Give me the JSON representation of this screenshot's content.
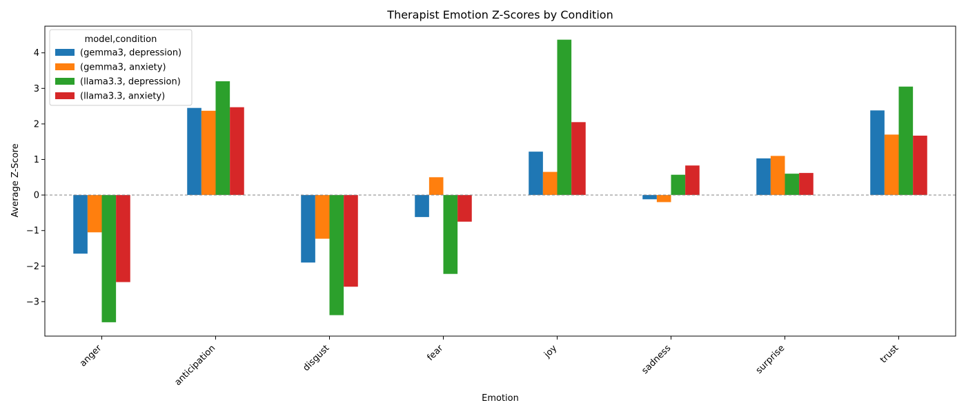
{
  "chart_data": {
    "type": "bar",
    "title": "Therapist Emotion Z-Scores by Condition",
    "xlabel": "Emotion",
    "ylabel": "Average Z-Score",
    "categories": [
      "anger",
      "anticipation",
      "disgust",
      "fear",
      "joy",
      "sadness",
      "surprise",
      "trust"
    ],
    "ylim": [
      -3.97,
      4.75
    ],
    "yticks": [
      {
        "value": -3,
        "label": "−3"
      },
      {
        "value": -2,
        "label": "−2"
      },
      {
        "value": -1,
        "label": "−1"
      },
      {
        "value": 0,
        "label": "0"
      },
      {
        "value": 1,
        "label": "1"
      },
      {
        "value": 2,
        "label": "2"
      },
      {
        "value": 3,
        "label": "3"
      },
      {
        "value": 4,
        "label": "4"
      }
    ],
    "zero_line": true,
    "grid": false,
    "legend": {
      "title": "model,condition",
      "position": "top-left"
    },
    "series": [
      {
        "name": "(gemma3, depression)",
        "color": "#1f77b4",
        "values": [
          -1.65,
          2.45,
          -1.9,
          -0.62,
          1.22,
          -0.12,
          1.03,
          2.38
        ]
      },
      {
        "name": "(gemma3, anxiety)",
        "color": "#ff7f0e",
        "values": [
          -1.05,
          2.37,
          -1.23,
          0.5,
          0.65,
          -0.2,
          1.1,
          1.7
        ]
      },
      {
        "name": "(llama3.3, depression)",
        "color": "#2ca02c",
        "values": [
          -3.58,
          3.2,
          -3.38,
          -2.22,
          4.37,
          0.57,
          0.6,
          3.05
        ]
      },
      {
        "name": "(llama3.3, anxiety)",
        "color": "#d62728",
        "values": [
          -2.45,
          2.47,
          -2.58,
          -0.75,
          2.05,
          0.83,
          0.62,
          1.67
        ]
      }
    ]
  }
}
